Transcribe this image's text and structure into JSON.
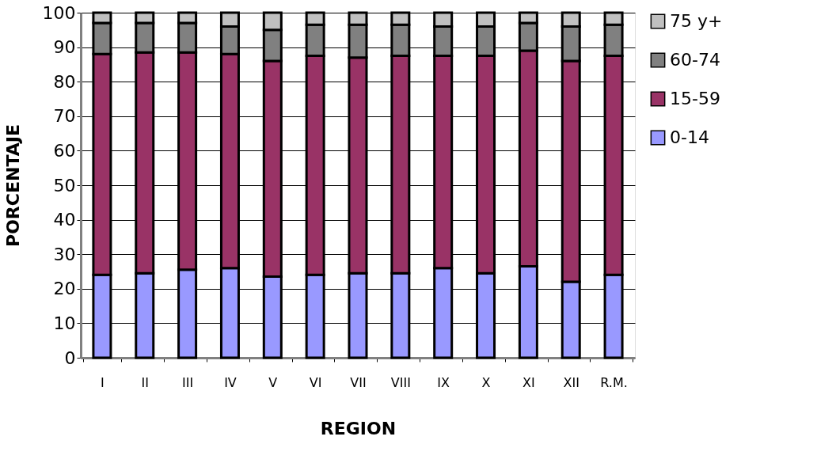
{
  "chart_data": {
    "type": "bar",
    "stacked": true,
    "xlabel": "REGION",
    "ylabel": "PORCENTAJE",
    "categories": [
      "I",
      "II",
      "III",
      "IV",
      "V",
      "VI",
      "VII",
      "VIII",
      "IX",
      "X",
      "XI",
      "XII",
      "R.M."
    ],
    "series": [
      {
        "name": "0-14",
        "color": "#9999ff",
        "values": [
          24,
          24.5,
          25.5,
          26,
          23.5,
          24,
          24.5,
          24.5,
          26,
          24.5,
          26.5,
          22,
          24
        ]
      },
      {
        "name": "15-59",
        "color": "#993366",
        "values": [
          64,
          64,
          63,
          62,
          62.5,
          63.5,
          62.5,
          63,
          61.5,
          63,
          62.5,
          64,
          63.5
        ]
      },
      {
        "name": "60-74",
        "color": "#808080",
        "values": [
          9,
          8.5,
          8.5,
          8,
          9,
          9,
          9.5,
          9,
          8.5,
          8.5,
          8,
          10,
          9
        ]
      },
      {
        "name": "75 y+",
        "color": "#c0c0c0",
        "values": [
          3,
          3,
          3,
          4,
          5,
          3.5,
          3.5,
          3.5,
          4,
          4,
          3,
          4,
          3.5
        ]
      }
    ],
    "ylim": [
      0,
      100
    ],
    "yticks": [
      0,
      10,
      20,
      30,
      40,
      50,
      60,
      70,
      80,
      90,
      100
    ],
    "grid": "y",
    "legend": "right"
  }
}
